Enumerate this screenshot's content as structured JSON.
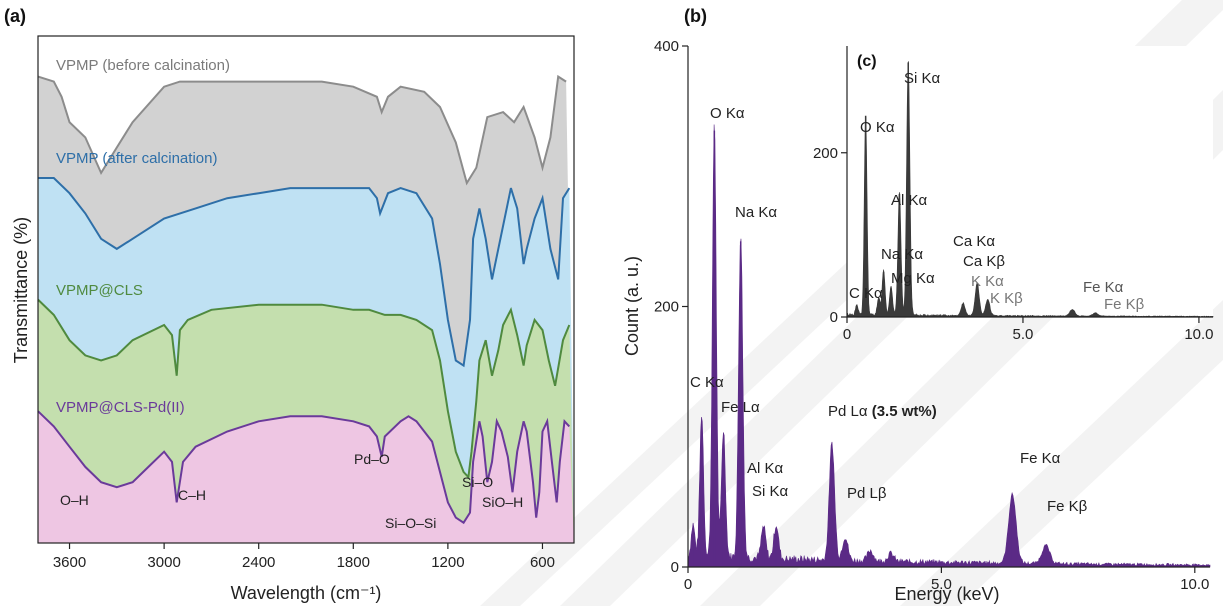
{
  "chart_data": [
    {
      "panel": "(a)",
      "type": "line",
      "xlabel": "Wavelength (cm⁻¹)",
      "ylabel": "Transmittance (%)",
      "xlim": [
        3800,
        400
      ],
      "x_ticks": [
        "3600",
        "3000",
        "2400",
        "1800",
        "1200",
        "600"
      ],
      "x_reversed": true,
      "series": [
        {
          "name": "VPMP (before calcination)",
          "color": "#8c8c8c",
          "fill": "#d2d2d2",
          "points": [
            [
              3800,
              92
            ],
            [
              3700,
              91
            ],
            [
              3650,
              88
            ],
            [
              3600,
              83
            ],
            [
              3500,
              80
            ],
            [
              3400,
              73
            ],
            [
              3300,
              78
            ],
            [
              3200,
              83
            ],
            [
              3000,
              90
            ],
            [
              2900,
              91
            ],
            [
              2700,
              91
            ],
            [
              2400,
              91
            ],
            [
              2000,
              91
            ],
            [
              1800,
              90
            ],
            [
              1650,
              88
            ],
            [
              1620,
              85
            ],
            [
              1580,
              88
            ],
            [
              1500,
              90
            ],
            [
              1350,
              89
            ],
            [
              1250,
              86
            ],
            [
              1150,
              79
            ],
            [
              1080,
              71
            ],
            [
              1020,
              74
            ],
            [
              950,
              84
            ],
            [
              850,
              85
            ],
            [
              780,
              83
            ],
            [
              720,
              86
            ],
            [
              650,
              80
            ],
            [
              600,
              74
            ],
            [
              550,
              80
            ],
            [
              500,
              92
            ],
            [
              450,
              91
            ]
          ]
        },
        {
          "name": "VPMP (after calcination)",
          "color": "#2e6fa8",
          "fill": "#bfe1f3",
          "points": [
            [
              3800,
              72
            ],
            [
              3700,
              72
            ],
            [
              3600,
              69
            ],
            [
              3500,
              65
            ],
            [
              3400,
              60
            ],
            [
              3300,
              58
            ],
            [
              3200,
              60
            ],
            [
              3000,
              64
            ],
            [
              2800,
              66
            ],
            [
              2600,
              68
            ],
            [
              2400,
              69
            ],
            [
              2200,
              70
            ],
            [
              2000,
              70
            ],
            [
              1800,
              70
            ],
            [
              1700,
              70
            ],
            [
              1650,
              68
            ],
            [
              1630,
              65
            ],
            [
              1580,
              69
            ],
            [
              1500,
              70
            ],
            [
              1400,
              69
            ],
            [
              1300,
              64
            ],
            [
              1250,
              55
            ],
            [
              1200,
              44
            ],
            [
              1150,
              36
            ],
            [
              1100,
              35
            ],
            [
              1060,
              44
            ],
            [
              1040,
              60
            ],
            [
              1000,
              66
            ],
            [
              960,
              60
            ],
            [
              920,
              52
            ],
            [
              880,
              58
            ],
            [
              840,
              64
            ],
            [
              800,
              70
            ],
            [
              760,
              66
            ],
            [
              720,
              55
            ],
            [
              700,
              58
            ],
            [
              650,
              64
            ],
            [
              600,
              68
            ],
            [
              550,
              58
            ],
            [
              500,
              52
            ],
            [
              470,
              68
            ],
            [
              430,
              70
            ]
          ]
        },
        {
          "name": "VPMP@CLS",
          "color": "#4f8a3f",
          "fill": "#c4dfae",
          "points": [
            [
              3800,
              48
            ],
            [
              3700,
              45
            ],
            [
              3600,
              40
            ],
            [
              3500,
              37
            ],
            [
              3400,
              36
            ],
            [
              3300,
              37
            ],
            [
              3200,
              40
            ],
            [
              3000,
              43
            ],
            [
              2950,
              41
            ],
            [
              2920,
              33
            ],
            [
              2900,
              42
            ],
            [
              2850,
              44
            ],
            [
              2700,
              46
            ],
            [
              2400,
              47
            ],
            [
              2000,
              47
            ],
            [
              1800,
              46
            ],
            [
              1700,
              46
            ],
            [
              1600,
              45
            ],
            [
              1500,
              45
            ],
            [
              1400,
              44
            ],
            [
              1300,
              42
            ],
            [
              1250,
              36
            ],
            [
              1200,
              26
            ],
            [
              1150,
              18
            ],
            [
              1100,
              14
            ],
            [
              1070,
              13
            ],
            [
              1050,
              18
            ],
            [
              1020,
              28
            ],
            [
              1000,
              36
            ],
            [
              960,
              40
            ],
            [
              920,
              33
            ],
            [
              880,
              38
            ],
            [
              850,
              43
            ],
            [
              800,
              46
            ],
            [
              760,
              41
            ],
            [
              720,
              35
            ],
            [
              700,
              39
            ],
            [
              650,
              44
            ],
            [
              600,
              42
            ],
            [
              560,
              36
            ],
            [
              520,
              31
            ],
            [
              470,
              40
            ],
            [
              430,
              43
            ]
          ]
        },
        {
          "name": "VPMP@CLS-Pd(II)",
          "color": "#6a3a9a",
          "fill": "#eec6e3",
          "points": [
            [
              3800,
              26
            ],
            [
              3700,
              23
            ],
            [
              3600,
              19
            ],
            [
              3500,
              15
            ],
            [
              3400,
              12
            ],
            [
              3300,
              11
            ],
            [
              3200,
              12
            ],
            [
              3100,
              15
            ],
            [
              3000,
              18
            ],
            [
              2950,
              16
            ],
            [
              2920,
              8
            ],
            [
              2880,
              16
            ],
            [
              2800,
              19
            ],
            [
              2600,
              22
            ],
            [
              2400,
              24
            ],
            [
              2200,
              25
            ],
            [
              2000,
              25
            ],
            [
              1800,
              24
            ],
            [
              1700,
              23
            ],
            [
              1650,
              21
            ],
            [
              1620,
              17
            ],
            [
              1600,
              21
            ],
            [
              1500,
              24
            ],
            [
              1450,
              25
            ],
            [
              1400,
              24
            ],
            [
              1300,
              20
            ],
            [
              1250,
              14
            ],
            [
              1200,
              8
            ],
            [
              1150,
              5
            ],
            [
              1100,
              4
            ],
            [
              1060,
              6
            ],
            [
              1040,
              16
            ],
            [
              1000,
              24
            ],
            [
              980,
              21
            ],
            [
              950,
              12
            ],
            [
              920,
              16
            ],
            [
              890,
              24
            ],
            [
              860,
              22
            ],
            [
              820,
              17
            ],
            [
              790,
              10
            ],
            [
              760,
              18
            ],
            [
              720,
              24
            ],
            [
              700,
              22
            ],
            [
              660,
              12
            ],
            [
              640,
              5
            ],
            [
              620,
              10
            ],
            [
              600,
              22
            ],
            [
              570,
              24
            ],
            [
              540,
              16
            ],
            [
              510,
              8
            ],
            [
              490,
              16
            ],
            [
              460,
              24
            ],
            [
              430,
              23
            ]
          ]
        }
      ],
      "annotations": [
        "O–H",
        "C–H",
        "Pd–O",
        "Si–O–Si",
        "Si–O",
        "SiO–H"
      ]
    },
    {
      "panel": "(b)",
      "type": "bar",
      "xlabel": "Energy (keV)",
      "ylabel": "Count (a. u.)",
      "xlim": [
        0,
        10.3
      ],
      "ylim": [
        0,
        400
      ],
      "x_ticks": [
        "0",
        "5.0",
        "10.0"
      ],
      "y_ticks": [
        "0",
        "200",
        "400"
      ],
      "color": "#5b2a86",
      "peaks": [
        [
          0.1,
          24
        ],
        [
          0.27,
          110
        ],
        [
          0.52,
          335
        ],
        [
          0.7,
          98
        ],
        [
          1.04,
          250
        ],
        [
          1.49,
          24
        ],
        [
          1.74,
          26
        ],
        [
          2.84,
          90
        ],
        [
          3.1,
          18
        ],
        [
          3.6,
          8
        ],
        [
          4.0,
          6
        ],
        [
          6.4,
          53
        ],
        [
          7.06,
          14
        ]
      ],
      "labels": {
        "c_ka": "C Kα",
        "o_ka": "O Kα",
        "fe_la": "Fe Lα",
        "na_ka": "Na Kα",
        "al_ka": "Al Kα",
        "si_ka": "Si Kα",
        "pd_la": "Pd Lα",
        "pd_la_wt": "(3.5 wt%)",
        "pd_lb": "Pd Lβ",
        "fe_ka": "Fe Kα",
        "fe_kb": "Fe Kβ"
      }
    },
    {
      "panel": "(c)",
      "type": "bar",
      "inset": true,
      "xlim": [
        0,
        10.4
      ],
      "ylim": [
        0,
        330
      ],
      "x_ticks": [
        "0",
        "5.0",
        "10.0"
      ],
      "y_ticks": [
        "0",
        "200"
      ],
      "color": "#3a3a3a",
      "peaks": [
        [
          0.28,
          12
        ],
        [
          0.53,
          245
        ],
        [
          0.9,
          20
        ],
        [
          1.04,
          55
        ],
        [
          1.25,
          35
        ],
        [
          1.49,
          150
        ],
        [
          1.74,
          310
        ],
        [
          3.3,
          15
        ],
        [
          3.7,
          40
        ],
        [
          4.0,
          20
        ],
        [
          6.4,
          8
        ],
        [
          7.06,
          4
        ]
      ],
      "labels": {
        "si_ka": "Si Kα",
        "o_ka": "O Kα",
        "al_ka": "Al Kα",
        "na_ka": "Na Kα",
        "mg_ka": "Mg Kα",
        "c_ka": "C Kα",
        "ca_ka": "Ca Kα",
        "ca_kb": "Ca Kβ",
        "k_ka": "K Kα",
        "k_kb": "K Kβ",
        "fe_ka": "Fe Kα",
        "fe_kb": "Fe Kβ"
      }
    }
  ]
}
